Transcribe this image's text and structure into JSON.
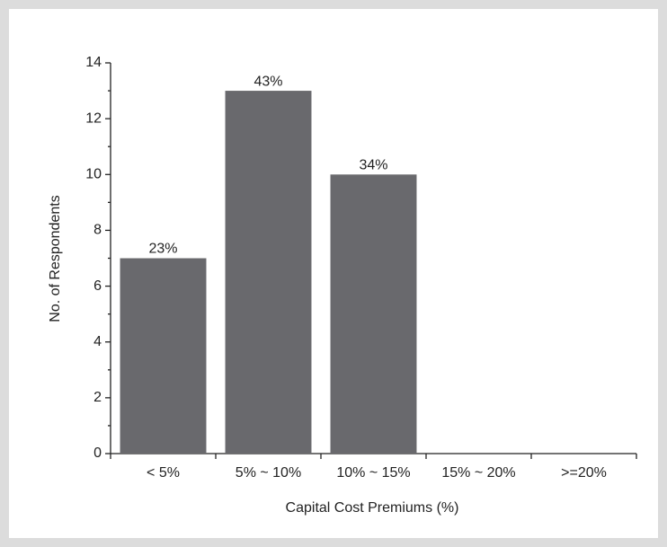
{
  "chart_data": {
    "type": "bar",
    "x_label": "Capital Cost Premiums (%)",
    "y_label": "No. of Respondents",
    "categories": [
      "< 5%",
      "5% ~ 10%",
      "10% ~ 15%",
      "15% ~ 20%",
      ">=20%"
    ],
    "values": [
      7,
      13,
      10,
      0,
      0
    ],
    "annotations": [
      "23%",
      "43%",
      "34%"
    ],
    "color": "#69696d",
    "ylim": [
      0,
      14
    ],
    "yticks": [
      0,
      2,
      4,
      6,
      8,
      10,
      12,
      14
    ],
    "grid": false
  }
}
